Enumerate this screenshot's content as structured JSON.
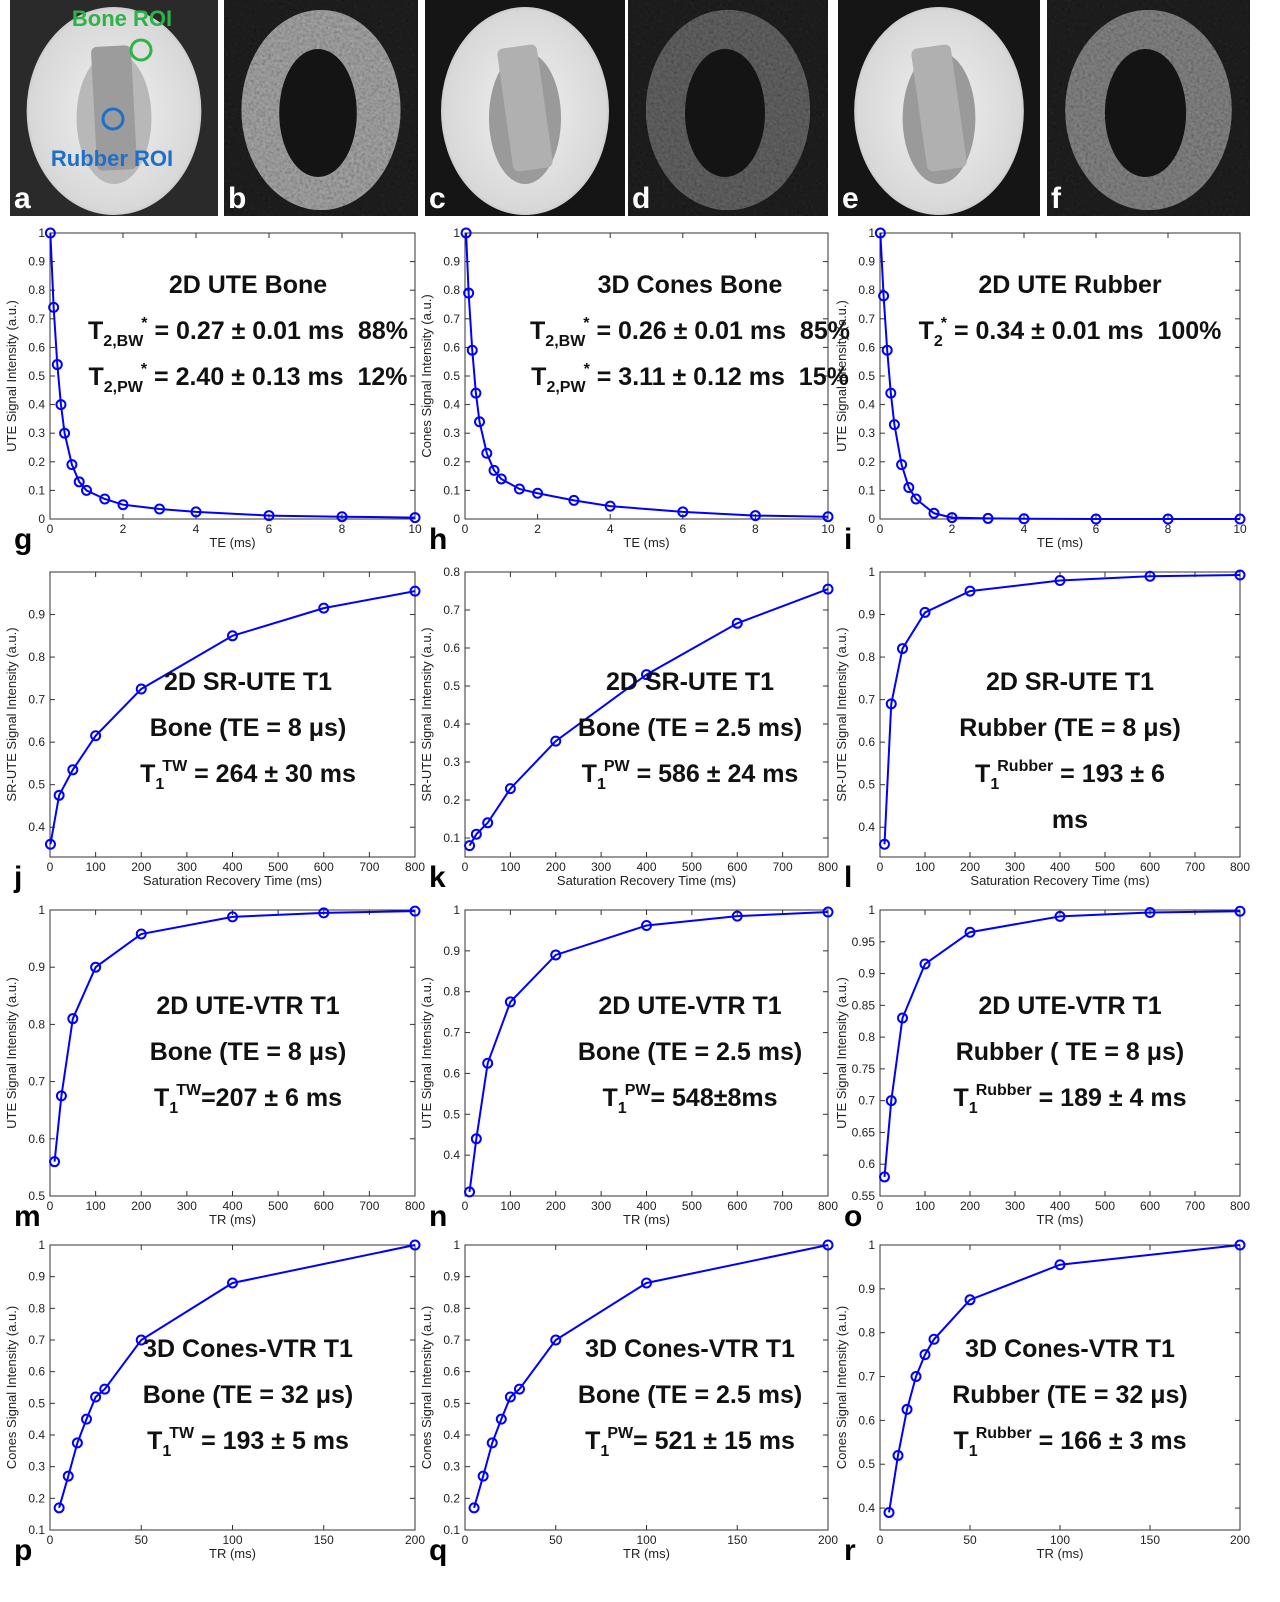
{
  "figure": {
    "panels": [
      "a",
      "b",
      "c",
      "d",
      "e",
      "f"
    ],
    "rois": [
      "Bone ROI",
      "Rubber ROI"
    ]
  },
  "chart_data": [
    {
      "type": "line",
      "panel": "g",
      "markers": true,
      "color": "#0000ff",
      "xlabel": "TE (ms)",
      "ylabel": "UTE Signal Intensity (a.u.)",
      "xlim": [
        0,
        10
      ],
      "xticks": [
        0,
        2,
        4,
        6,
        8,
        10
      ],
      "ylim": [
        0,
        1
      ],
      "yticks": [
        0,
        0.1,
        0.2,
        0.3,
        0.4,
        0.5,
        0.6,
        0.7,
        0.8,
        0.9,
        1
      ],
      "x": [
        0.01,
        0.1,
        0.2,
        0.3,
        0.4,
        0.6,
        0.8,
        1,
        1.5,
        2,
        3,
        4,
        6,
        8,
        10
      ],
      "values": [
        1,
        0.74,
        0.54,
        0.4,
        0.3,
        0.19,
        0.13,
        0.1,
        0.07,
        0.05,
        0.035,
        0.025,
        0.012,
        0.008,
        0.005
      ],
      "annotation": [
        [
          {
            "text": "2D UTE Bone"
          }
        ],
        [
          {
            "text": "T"
          },
          {
            "sub": "2,BW"
          },
          {
            "sup": "*"
          },
          {
            "text": " = 0.27 ± 0.01 ms  88%"
          }
        ],
        [
          {
            "text": "T"
          },
          {
            "sub": "2,PW"
          },
          {
            "sup": "*"
          },
          {
            "text": " = 2.40 ± 0.13 ms  12%"
          }
        ]
      ]
    },
    {
      "type": "line",
      "panel": "h",
      "markers": true,
      "color": "#0000ff",
      "xlabel": "TE (ms)",
      "ylabel": "Cones Signal Intensity (a.u.)",
      "xlim": [
        0,
        10
      ],
      "xticks": [
        0,
        2,
        4,
        6,
        8,
        10
      ],
      "ylim": [
        0,
        1
      ],
      "yticks": [
        0,
        0.1,
        0.2,
        0.3,
        0.4,
        0.5,
        0.6,
        0.7,
        0.8,
        0.9,
        1
      ],
      "x": [
        0.03,
        0.1,
        0.2,
        0.3,
        0.4,
        0.6,
        0.8,
        1,
        1.5,
        2,
        3,
        4,
        6,
        8,
        10
      ],
      "values": [
        1,
        0.79,
        0.59,
        0.44,
        0.34,
        0.23,
        0.17,
        0.14,
        0.105,
        0.09,
        0.065,
        0.045,
        0.025,
        0.012,
        0.008
      ],
      "annotation": [
        [
          {
            "text": "3D Cones Bone"
          }
        ],
        [
          {
            "text": "T"
          },
          {
            "sub": "2,BW"
          },
          {
            "sup": "*"
          },
          {
            "text": " = 0.26 ± 0.01 ms  85%"
          }
        ],
        [
          {
            "text": "T"
          },
          {
            "sub": "2,PW"
          },
          {
            "sup": "*"
          },
          {
            "text": " = 3.11 ± 0.12 ms  15%"
          }
        ]
      ]
    },
    {
      "type": "line",
      "panel": "i",
      "markers": true,
      "color": "#0000ff",
      "xlabel": "TE (ms)",
      "ylabel": "UTE Signal Intensity (a.u.)",
      "xlim": [
        0,
        10
      ],
      "xticks": [
        0,
        2,
        4,
        6,
        8,
        10
      ],
      "ylim": [
        0,
        1
      ],
      "yticks": [
        0,
        0.1,
        0.2,
        0.3,
        0.4,
        0.5,
        0.6,
        0.7,
        0.8,
        0.9,
        1
      ],
      "x": [
        0.01,
        0.1,
        0.2,
        0.3,
        0.4,
        0.6,
        0.8,
        1,
        1.5,
        2,
        3,
        4,
        6,
        8,
        10
      ],
      "values": [
        1,
        0.78,
        0.59,
        0.44,
        0.33,
        0.19,
        0.11,
        0.07,
        0.02,
        0.005,
        0.002,
        0.001,
        0,
        0,
        0
      ],
      "annotation": [
        [
          {
            "text": "2D UTE Rubber"
          }
        ],
        [
          {
            "text": "T"
          },
          {
            "sub": "2"
          },
          {
            "sup": "*"
          },
          {
            "text": " = 0.34 ± 0.01 ms  100%"
          }
        ]
      ]
    },
    {
      "type": "line",
      "panel": "j",
      "markers": true,
      "color": "#0000ff",
      "xlabel": "Saturation Recovery Time (ms)",
      "ylabel": "SR-UTE Signal Intensity (a.u.)",
      "xlim": [
        0,
        800
      ],
      "xticks": [
        0,
        100,
        200,
        300,
        400,
        500,
        600,
        700,
        800
      ],
      "ylim": [
        0.33,
        1
      ],
      "yticks": [
        0.4,
        0.5,
        0.6,
        0.7,
        0.8,
        0.9
      ],
      "x": [
        1,
        20,
        50,
        100,
        200,
        400,
        600,
        800
      ],
      "values": [
        0.36,
        0.475,
        0.535,
        0.615,
        0.725,
        0.85,
        0.915,
        0.955
      ],
      "annotation": [
        [
          {
            "text": "2D SR-UTE T1"
          }
        ],
        [
          {
            "text": "Bone (TE = 8 μs)"
          }
        ],
        [
          {
            "text": "T"
          },
          {
            "sub": "1"
          },
          {
            "sup": "TW"
          },
          {
            "text": " = 264 ± 30 ms"
          }
        ]
      ]
    },
    {
      "type": "line",
      "panel": "k",
      "markers": true,
      "color": "#0000ff",
      "xlabel": "Saturation Recovery Time (ms)",
      "ylabel": "SR-UTE Signal Intensity (a.u.)",
      "xlim": [
        0,
        800
      ],
      "xticks": [
        0,
        100,
        200,
        300,
        400,
        500,
        600,
        700,
        800
      ],
      "ylim": [
        0.05,
        0.8
      ],
      "yticks": [
        0.1,
        0.2,
        0.3,
        0.4,
        0.5,
        0.6,
        0.7,
        0.8
      ],
      "x": [
        10,
        25,
        50,
        100,
        200,
        400,
        600,
        800
      ],
      "values": [
        0.08,
        0.11,
        0.14,
        0.23,
        0.355,
        0.53,
        0.665,
        0.755
      ],
      "annotation": [
        [
          {
            "text": "2D SR-UTE T1"
          }
        ],
        [
          {
            "text": "Bone (TE = 2.5 ms)"
          }
        ],
        [
          {
            "text": "T"
          },
          {
            "sub": "1"
          },
          {
            "sup": "PW"
          },
          {
            "text": " = 586 ± 24 ms"
          }
        ]
      ]
    },
    {
      "type": "line",
      "panel": "l",
      "markers": true,
      "color": "#0000ff",
      "xlabel": "Saturation Recovery Time (ms)",
      "ylabel": "SR-UTE Signal Intensity (a.u.)",
      "xlim": [
        0,
        800
      ],
      "xticks": [
        0,
        100,
        200,
        300,
        400,
        500,
        600,
        700,
        800
      ],
      "ylim": [
        0.33,
        1
      ],
      "yticks": [
        0.4,
        0.5,
        0.6,
        0.7,
        0.8,
        0.9,
        1
      ],
      "x": [
        10,
        25,
        50,
        100,
        200,
        400,
        600,
        800
      ],
      "values": [
        0.36,
        0.69,
        0.82,
        0.905,
        0.955,
        0.98,
        0.99,
        0.993
      ],
      "annotation": [
        [
          {
            "text": "2D SR-UTE T1"
          }
        ],
        [
          {
            "text": "Rubber (TE = 8 μs)"
          }
        ],
        [
          {
            "text": "T"
          },
          {
            "sub": "1"
          },
          {
            "sup": "Rubber"
          },
          {
            "text": " = 193 ± 6"
          }
        ],
        [
          {
            "text": "ms"
          }
        ]
      ]
    },
    {
      "type": "line",
      "panel": "m",
      "markers": true,
      "color": "#0000ff",
      "xlabel": "TR (ms)",
      "ylabel": "UTE Signal Intensity (a.u.)",
      "xlim": [
        0,
        800
      ],
      "xticks": [
        0,
        100,
        200,
        300,
        400,
        500,
        600,
        700,
        800
      ],
      "ylim": [
        0.5,
        1
      ],
      "yticks": [
        0.5,
        0.6,
        0.7,
        0.8,
        0.9,
        1
      ],
      "x": [
        10,
        25,
        50,
        100,
        200,
        400,
        600,
        800
      ],
      "values": [
        0.56,
        0.675,
        0.81,
        0.9,
        0.958,
        0.988,
        0.995,
        0.998
      ],
      "annotation": [
        [
          {
            "text": "2D UTE-VTR T1"
          }
        ],
        [
          {
            "text": "Bone (TE = 8 μs)"
          }
        ],
        [
          {
            "text": "T"
          },
          {
            "sub": "1"
          },
          {
            "sup": "TW"
          },
          {
            "text": "=207 ± 6 ms"
          }
        ]
      ]
    },
    {
      "type": "line",
      "panel": "n",
      "markers": true,
      "color": "#0000ff",
      "xlabel": "TR (ms)",
      "ylabel": "UTE Signal Intensity (a.u.)",
      "xlim": [
        0,
        800
      ],
      "xticks": [
        0,
        100,
        200,
        300,
        400,
        500,
        600,
        700,
        800
      ],
      "ylim": [
        0.3,
        1
      ],
      "yticks": [
        0.4,
        0.5,
        0.6,
        0.7,
        0.8,
        0.9,
        1
      ],
      "x": [
        10,
        25,
        50,
        100,
        200,
        400,
        600,
        800
      ],
      "values": [
        0.31,
        0.44,
        0.625,
        0.775,
        0.89,
        0.962,
        0.985,
        0.995
      ],
      "annotation": [
        [
          {
            "text": "2D UTE-VTR T1"
          }
        ],
        [
          {
            "text": "Bone (TE = 2.5 ms)"
          }
        ],
        [
          {
            "text": "T"
          },
          {
            "sub": "1"
          },
          {
            "sup": "PW"
          },
          {
            "text": "= 548±8ms"
          }
        ]
      ]
    },
    {
      "type": "line",
      "panel": "o",
      "markers": true,
      "color": "#0000ff",
      "xlabel": "TR (ms)",
      "ylabel": "UTE Signal Intensity (a.u.)",
      "xlim": [
        0,
        800
      ],
      "xticks": [
        0,
        100,
        200,
        300,
        400,
        500,
        600,
        700,
        800
      ],
      "ylim": [
        0.55,
        1
      ],
      "yticks": [
        0.55,
        0.6,
        0.65,
        0.7,
        0.75,
        0.8,
        0.85,
        0.9,
        0.95,
        1
      ],
      "x": [
        10,
        25,
        50,
        100,
        200,
        400,
        600,
        800
      ],
      "values": [
        0.58,
        0.7,
        0.83,
        0.915,
        0.965,
        0.99,
        0.996,
        0.998
      ],
      "annotation": [
        [
          {
            "text": "2D UTE-VTR T1"
          }
        ],
        [
          {
            "text": "Rubber ( TE = 8 μs)"
          }
        ],
        [
          {
            "text": "T"
          },
          {
            "sub": "1"
          },
          {
            "sup": "Rubber"
          },
          {
            "text": " = 189 ± 4 ms"
          }
        ]
      ]
    },
    {
      "type": "line",
      "panel": "p",
      "markers": true,
      "color": "#0000ff",
      "xlabel": "TR (ms)",
      "ylabel": "Cones Signal Intensity (a.u.)",
      "xlim": [
        0,
        200
      ],
      "xticks": [
        0,
        50,
        100,
        150,
        200
      ],
      "ylim": [
        0.1,
        1
      ],
      "yticks": [
        0.1,
        0.2,
        0.3,
        0.4,
        0.5,
        0.6,
        0.7,
        0.8,
        0.9,
        1
      ],
      "x": [
        5,
        10,
        15,
        20,
        25,
        30,
        50,
        100,
        200
      ],
      "values": [
        0.17,
        0.27,
        0.375,
        0.45,
        0.52,
        0.545,
        0.7,
        0.88,
        1
      ],
      "annotation": [
        [
          {
            "text": "3D Cones-VTR T1"
          }
        ],
        [
          {
            "text": "Bone (TE = 32 μs)"
          }
        ],
        [
          {
            "text": "T"
          },
          {
            "sub": "1"
          },
          {
            "sup": "TW"
          },
          {
            "text": " = 193 ± 5 ms"
          }
        ]
      ]
    },
    {
      "type": "line",
      "panel": "q",
      "markers": true,
      "color": "#0000ff",
      "xlabel": "TR (ms)",
      "ylabel": "Cones Signal Intensity (a.u.)",
      "xlim": [
        0,
        200
      ],
      "xticks": [
        0,
        50,
        100,
        150,
        200
      ],
      "ylim": [
        0.1,
        1
      ],
      "yticks": [
        0.1,
        0.2,
        0.3,
        0.4,
        0.5,
        0.6,
        0.7,
        0.8,
        0.9,
        1
      ],
      "x": [
        5,
        10,
        15,
        20,
        25,
        30,
        50,
        100,
        200
      ],
      "values": [
        0.17,
        0.27,
        0.375,
        0.45,
        0.52,
        0.545,
        0.7,
        0.88,
        1
      ],
      "annotation": [
        [
          {
            "text": "3D Cones-VTR T1"
          }
        ],
        [
          {
            "text": "Bone (TE = 2.5 ms)"
          }
        ],
        [
          {
            "text": "T"
          },
          {
            "sub": "1"
          },
          {
            "sup": "PW"
          },
          {
            "text": "= 521 ± 15 ms"
          }
        ]
      ]
    },
    {
      "type": "line",
      "panel": "r",
      "markers": true,
      "color": "#0000ff",
      "xlabel": "TR (ms)",
      "ylabel": "Cones Signal Intensity (a.u.)",
      "xlim": [
        0,
        200
      ],
      "xticks": [
        0,
        50,
        100,
        150,
        200
      ],
      "ylim": [
        0.35,
        1
      ],
      "yticks": [
        0.4,
        0.5,
        0.6,
        0.7,
        0.8,
        0.9,
        1
      ],
      "x": [
        5,
        10,
        15,
        20,
        25,
        30,
        50,
        100,
        200
      ],
      "values": [
        0.39,
        0.52,
        0.625,
        0.7,
        0.75,
        0.785,
        0.875,
        0.955,
        1
      ],
      "annotation": [
        [
          {
            "text": "3D Cones-VTR T1"
          }
        ],
        [
          {
            "text": "Rubber (TE = 32 μs)"
          }
        ],
        [
          {
            "text": "T"
          },
          {
            "sub": "1"
          },
          {
            "sup": "Rubber"
          },
          {
            "text": " = 166 ± 3 ms"
          }
        ]
      ]
    }
  ]
}
